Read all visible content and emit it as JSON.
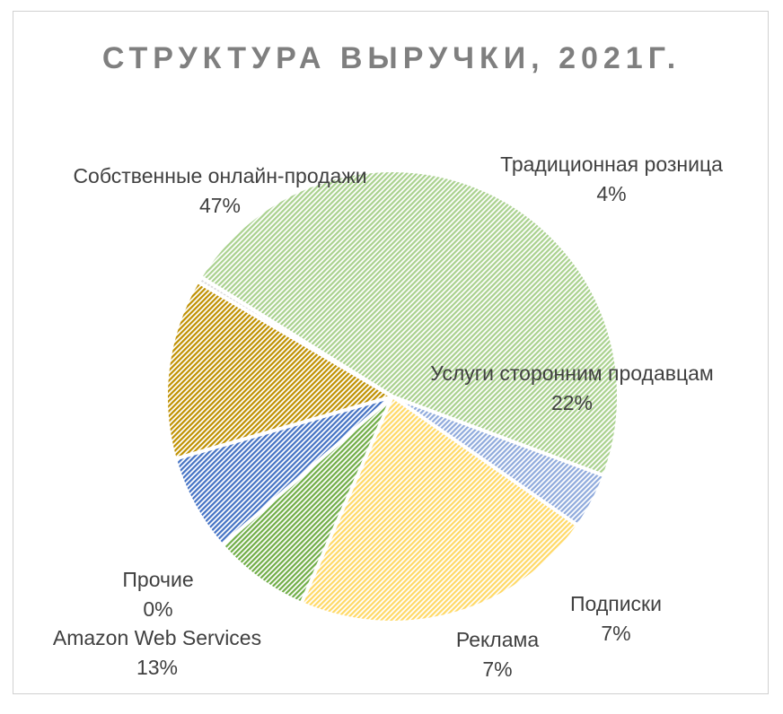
{
  "chart_data": {
    "type": "pie",
    "title": "СТРУКТУРА ВЫРУЧКИ, 2021Г.",
    "slices": [
      {
        "name": "Собственные онлайн-продажи",
        "value": 47,
        "label": "47%",
        "color": "#a9d18e"
      },
      {
        "name": "Традиционная розница",
        "value": 4,
        "label": "4%",
        "color": "#8faadc"
      },
      {
        "name": "Услуги сторонним продавцам",
        "value": 22,
        "label": "22%",
        "color": "#ffd966"
      },
      {
        "name": "Подписки",
        "value": 7,
        "label": "7%",
        "color": "#70ad47"
      },
      {
        "name": "Реклама",
        "value": 7,
        "label": "7%",
        "color": "#4472c4"
      },
      {
        "name": "Amazon Web Services",
        "value": 13,
        "label": "13%",
        "color": "#bf9000"
      },
      {
        "name": "Прочие",
        "value": 0.4,
        "label": "0%",
        "color": "#d9d9d9"
      }
    ]
  }
}
